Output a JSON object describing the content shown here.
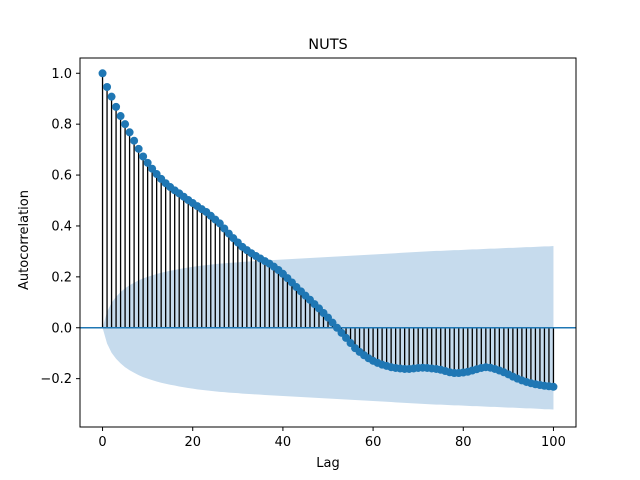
{
  "chart_data": {
    "type": "stem",
    "title": "NUTS",
    "xlabel": "Lag",
    "ylabel": "Autocorrelation",
    "xlim": [
      -5,
      105
    ],
    "ylim": [
      -0.39,
      1.06
    ],
    "xticks": [
      0,
      20,
      40,
      60,
      80,
      100
    ],
    "yticks": [
      -0.2,
      0.0,
      0.2,
      0.4,
      0.6,
      0.8,
      1.0
    ],
    "ytick_labels": [
      "−0.2",
      "0.0",
      "0.2",
      "0.4",
      "0.6",
      "0.8",
      "1.0"
    ],
    "grid": false,
    "colors": {
      "marker": "#1f77b4",
      "stem": "#000000",
      "zero_line": "#1f77b4",
      "confidence_band": "#c6dbed"
    },
    "lags": [
      0,
      1,
      2,
      3,
      4,
      5,
      6,
      7,
      8,
      9,
      10,
      11,
      12,
      13,
      14,
      15,
      16,
      17,
      18,
      19,
      20,
      21,
      22,
      23,
      24,
      25,
      26,
      27,
      28,
      29,
      30,
      31,
      32,
      33,
      34,
      35,
      36,
      37,
      38,
      39,
      40,
      41,
      42,
      43,
      44,
      45,
      46,
      47,
      48,
      49,
      50,
      51,
      52,
      53,
      54,
      55,
      56,
      57,
      58,
      59,
      60,
      61,
      62,
      63,
      64,
      65,
      66,
      67,
      68,
      69,
      70,
      71,
      72,
      73,
      74,
      75,
      76,
      77,
      78,
      79,
      80,
      81,
      82,
      83,
      84,
      85,
      86,
      87,
      88,
      89,
      90,
      91,
      92,
      93,
      94,
      95,
      96,
      97,
      98,
      99,
      100
    ],
    "autocorrelation": [
      1.0,
      0.946,
      0.908,
      0.868,
      0.832,
      0.8,
      0.768,
      0.735,
      0.703,
      0.673,
      0.648,
      0.625,
      0.604,
      0.585,
      0.568,
      0.553,
      0.54,
      0.528,
      0.515,
      0.502,
      0.49,
      0.478,
      0.466,
      0.455,
      0.44,
      0.425,
      0.41,
      0.39,
      0.37,
      0.352,
      0.335,
      0.318,
      0.305,
      0.293,
      0.282,
      0.272,
      0.262,
      0.252,
      0.24,
      0.227,
      0.212,
      0.195,
      0.178,
      0.16,
      0.143,
      0.126,
      0.11,
      0.093,
      0.076,
      0.058,
      0.04,
      0.02,
      0.0,
      -0.02,
      -0.04,
      -0.06,
      -0.08,
      -0.095,
      -0.108,
      -0.12,
      -0.13,
      -0.138,
      -0.145,
      -0.15,
      -0.155,
      -0.158,
      -0.16,
      -0.162,
      -0.162,
      -0.16,
      -0.158,
      -0.157,
      -0.158,
      -0.16,
      -0.162,
      -0.165,
      -0.17,
      -0.175,
      -0.178,
      -0.178,
      -0.176,
      -0.173,
      -0.168,
      -0.163,
      -0.158,
      -0.155,
      -0.157,
      -0.162,
      -0.168,
      -0.175,
      -0.183,
      -0.192,
      -0.2,
      -0.207,
      -0.213,
      -0.218,
      -0.222,
      -0.225,
      -0.228,
      -0.23,
      -0.232
    ],
    "confidence_upper": [
      0.0,
      0.062,
      0.098,
      0.122,
      0.14,
      0.155,
      0.167,
      0.177,
      0.186,
      0.194,
      0.2,
      0.206,
      0.211,
      0.216,
      0.22,
      0.224,
      0.227,
      0.231,
      0.234,
      0.237,
      0.239,
      0.242,
      0.244,
      0.246,
      0.248,
      0.25,
      0.252,
      0.253,
      0.255,
      0.256,
      0.257,
      0.259,
      0.26,
      0.261,
      0.262,
      0.263,
      0.264,
      0.265,
      0.266,
      0.267,
      0.268,
      0.269,
      0.27,
      0.271,
      0.272,
      0.273,
      0.274,
      0.275,
      0.276,
      0.277,
      0.278,
      0.279,
      0.28,
      0.281,
      0.282,
      0.283,
      0.284,
      0.285,
      0.286,
      0.287,
      0.288,
      0.289,
      0.29,
      0.291,
      0.292,
      0.293,
      0.294,
      0.295,
      0.296,
      0.297,
      0.298,
      0.299,
      0.3,
      0.301,
      0.302,
      0.302,
      0.303,
      0.304,
      0.305,
      0.305,
      0.306,
      0.307,
      0.308,
      0.308,
      0.309,
      0.31,
      0.311,
      0.311,
      0.312,
      0.313,
      0.314,
      0.314,
      0.315,
      0.316,
      0.317,
      0.317,
      0.318,
      0.319,
      0.32,
      0.32,
      0.321
    ]
  }
}
